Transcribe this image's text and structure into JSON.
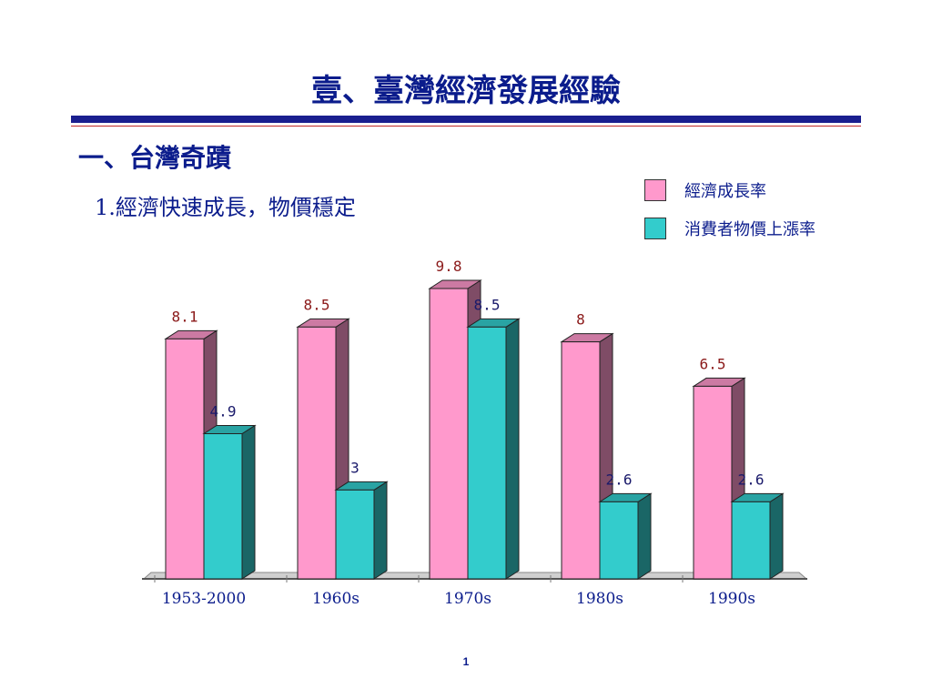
{
  "slide": {
    "title": "壹、臺灣經濟發展經驗",
    "section": "一、台灣奇蹟",
    "subheading": "1.經濟快速成長，物價穩定",
    "page_number": "1"
  },
  "legend": [
    {
      "label": "經濟成長率",
      "color": "#ff99cc"
    },
    {
      "label": "消費者物價上漲率",
      "color": "#33cccc"
    }
  ],
  "colors": {
    "pink_front": "#ff99cc",
    "pink_side": "#7f4c66",
    "pink_top": "#cc7aa3",
    "teal_front": "#33cccc",
    "teal_side": "#1a6666",
    "teal_top": "#29a3a3",
    "pink_label": "#8b1a1a",
    "teal_label": "#1a1a6b",
    "axis_label": "#0b1c8c"
  },
  "chart_data": {
    "type": "bar",
    "categories": [
      "1953-2000",
      "1960s",
      "1970s",
      "1980s",
      "1990s"
    ],
    "series": [
      {
        "name": "經濟成長率",
        "values": [
          8.1,
          8.5,
          9.8,
          8,
          6.5
        ],
        "labels": [
          "8.1",
          "8.5",
          "9.8",
          "8",
          "6.5"
        ]
      },
      {
        "name": "消費者物價上漲率",
        "values": [
          4.9,
          3,
          8.5,
          2.6,
          2.6
        ],
        "labels": [
          "4.9",
          "3",
          "8.5",
          "2.6",
          "2.6"
        ]
      }
    ],
    "ylim": [
      0,
      9.8
    ],
    "grid": false,
    "legend_position": "top-right",
    "three_d": true
  }
}
